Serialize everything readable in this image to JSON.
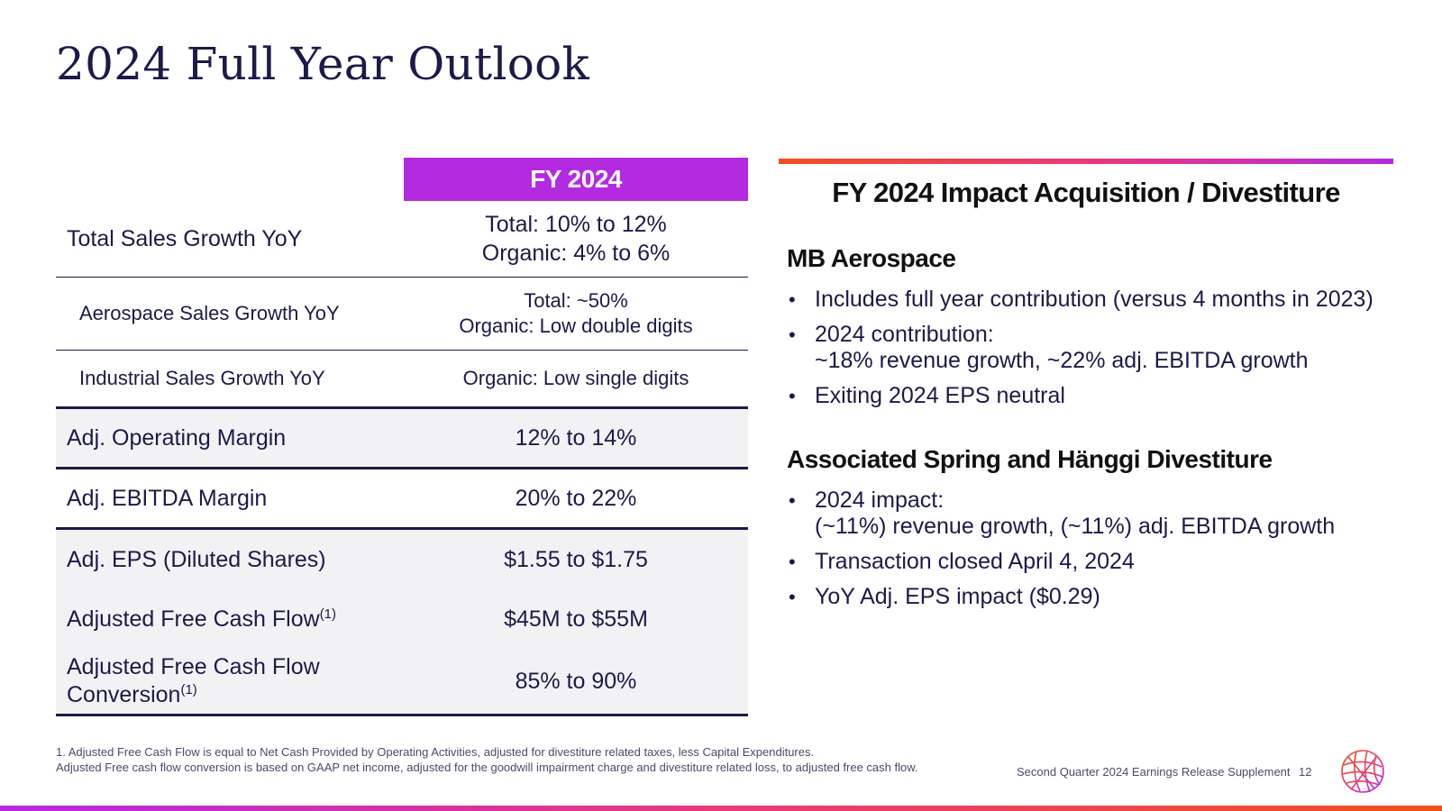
{
  "page": {
    "title": "2024 Full Year Outlook"
  },
  "table": {
    "header": "FY 2024",
    "rows": [
      {
        "label": "Total Sales Growth YoY",
        "value_line1": "Total: 10% to 12%",
        "value_line2": "Organic: 4% to 6%"
      },
      {
        "label": "Aerospace Sales Growth YoY",
        "value_line1": "Total: ~50%",
        "value_line2": "Organic: Low double digits"
      },
      {
        "label": "Industrial Sales Growth YoY",
        "value": "Organic: Low single digits"
      },
      {
        "label": "Adj. Operating Margin",
        "value": "12% to 14%"
      },
      {
        "label": "Adj. EBITDA Margin",
        "value": "20% to 22%"
      },
      {
        "label": "Adj. EPS (Diluted Shares)",
        "value": "$1.55 to $1.75"
      },
      {
        "label": "Adjusted Free Cash Flow",
        "note": "(1)",
        "value": "$45M to $55M"
      },
      {
        "label_line1": "Adjusted Free Cash Flow",
        "label_line2": "Conversion",
        "note": "(1)",
        "value": "85% to 90%"
      }
    ]
  },
  "impact": {
    "title": "FY 2024 Impact Acquisition / Divestiture",
    "bullet_glyph": "•",
    "sections": [
      {
        "heading": "MB Aerospace",
        "bullets": [
          {
            "line1": "Includes full year contribution (versus 4 months in 2023)"
          },
          {
            "line1": "2024 contribution:",
            "line2": "~18% revenue growth, ~22% adj. EBITDA growth"
          },
          {
            "line1": "Exiting 2024 EPS neutral"
          }
        ]
      },
      {
        "heading": "Associated Spring and Hänggi Divestiture",
        "bullets": [
          {
            "line1": "2024 impact:",
            "line2": "(~11%) revenue growth, (~11%) adj. EBITDA growth"
          },
          {
            "line1": "Transaction closed April 4, 2024"
          },
          {
            "line1": "YoY Adj. EPS impact ($0.29)"
          }
        ]
      }
    ]
  },
  "footer": {
    "footnote_line1": "1. Adjusted Free Cash Flow is equal to Net Cash Provided by Operating Activities, adjusted for divestiture related taxes, less Capital Expenditures.",
    "footnote_line2": "Adjusted Free cash flow conversion is based on GAAP net income, adjusted for the goodwill impairment charge and divestiture related loss, to adjusted free cash flow.",
    "caption": "Second Quarter 2024 Earnings Release Supplement",
    "page_number": "12"
  },
  "colors": {
    "navy": "#1c1a4a",
    "purple": "#b42ae0",
    "orange": "#f0501e",
    "pink": "#e8397a",
    "row_shade": "#f2f2f4"
  },
  "icons": {
    "logo": "globe-logo-icon"
  }
}
